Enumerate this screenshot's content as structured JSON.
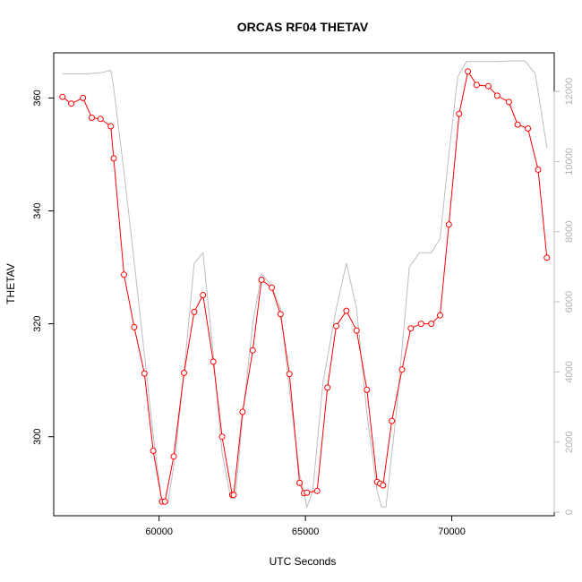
{
  "chart_data": {
    "type": "line",
    "title": "ORCAS RF04 THETAV",
    "xlabel": "UTC Seconds",
    "ylabel": "THETAV",
    "xlim": [
      56400,
      73500
    ],
    "ylim": [
      286,
      368
    ],
    "y2lim": [
      -100,
      13100
    ],
    "x_ticks": [
      60000,
      65000,
      70000
    ],
    "y_ticks": [
      300,
      320,
      340,
      360
    ],
    "y2_ticks": [
      0,
      2000,
      4000,
      6000,
      8000,
      10000,
      12000
    ],
    "grid": false,
    "legend": "none",
    "colors": {
      "primary": "#ff0000",
      "secondary": "#bebebe"
    },
    "series": [
      {
        "role": "primary",
        "style": "line-with-circles",
        "x": [
          56700,
          57000,
          57400,
          57700,
          58000,
          58350,
          58450,
          58800,
          59150,
          59500,
          59800,
          60100,
          60200,
          60500,
          60850,
          61200,
          61500,
          61850,
          62150,
          62500,
          62550,
          62850,
          63200,
          63500,
          63850,
          64150,
          64450,
          64800,
          64950,
          65050,
          65400,
          65750,
          66050,
          66400,
          66750,
          67100,
          67450,
          67550,
          67650,
          67950,
          68300,
          68600,
          68950,
          69300,
          69600,
          69900,
          70250,
          70550,
          70850,
          71250,
          71550,
          71950,
          72250,
          72600,
          72950,
          73250
        ],
        "y": [
          360.2,
          359,
          360,
          356.5,
          356.3,
          355,
          349.3,
          328.7,
          319.4,
          311.2,
          297.5,
          288.5,
          288.5,
          296.5,
          311.3,
          322.1,
          325.1,
          313.3,
          300,
          289.7,
          289.7,
          304.4,
          315.3,
          327.8,
          326.4,
          321.7,
          311.1,
          291.8,
          290,
          290.1,
          290.4,
          308.7,
          319.6,
          322.3,
          318.8,
          308.3,
          292,
          291.7,
          291.4,
          302.8,
          311.9,
          319.2,
          320,
          320,
          321.5,
          337.6,
          357.2,
          364.7,
          362.3,
          362.1,
          360.4,
          359.3,
          355.3,
          354.6,
          347.3,
          331.7
        ]
      },
      {
        "role": "secondary",
        "style": "line",
        "x": [
          56700,
          57500,
          58000,
          58350,
          58450,
          58800,
          59100,
          59500,
          59800,
          60100,
          60300,
          60550,
          60850,
          61200,
          61500,
          61850,
          62150,
          62450,
          62600,
          62850,
          63200,
          63500,
          63850,
          64150,
          64450,
          64800,
          65050,
          65250,
          65600,
          66050,
          66400,
          66750,
          67100,
          67450,
          67600,
          67750,
          68100,
          68550,
          68900,
          69300,
          69600,
          69900,
          70200,
          70500,
          71000,
          71500,
          72000,
          72500,
          72850,
          73250
        ],
        "y": [
          12500,
          12500,
          12530,
          12600,
          12100,
          9700,
          7500,
          4500,
          2200,
          250,
          250,
          1600,
          4000,
          7100,
          7400,
          4500,
          1700,
          400,
          400,
          2700,
          5400,
          6800,
          6450,
          5800,
          3500,
          1100,
          150,
          600,
          3700,
          5800,
          7100,
          5800,
          2800,
          600,
          150,
          150,
          2800,
          7000,
          7400,
          7400,
          7800,
          10200,
          12400,
          12850,
          12850,
          12850,
          12870,
          12870,
          12500,
          10400
        ]
      }
    ]
  }
}
